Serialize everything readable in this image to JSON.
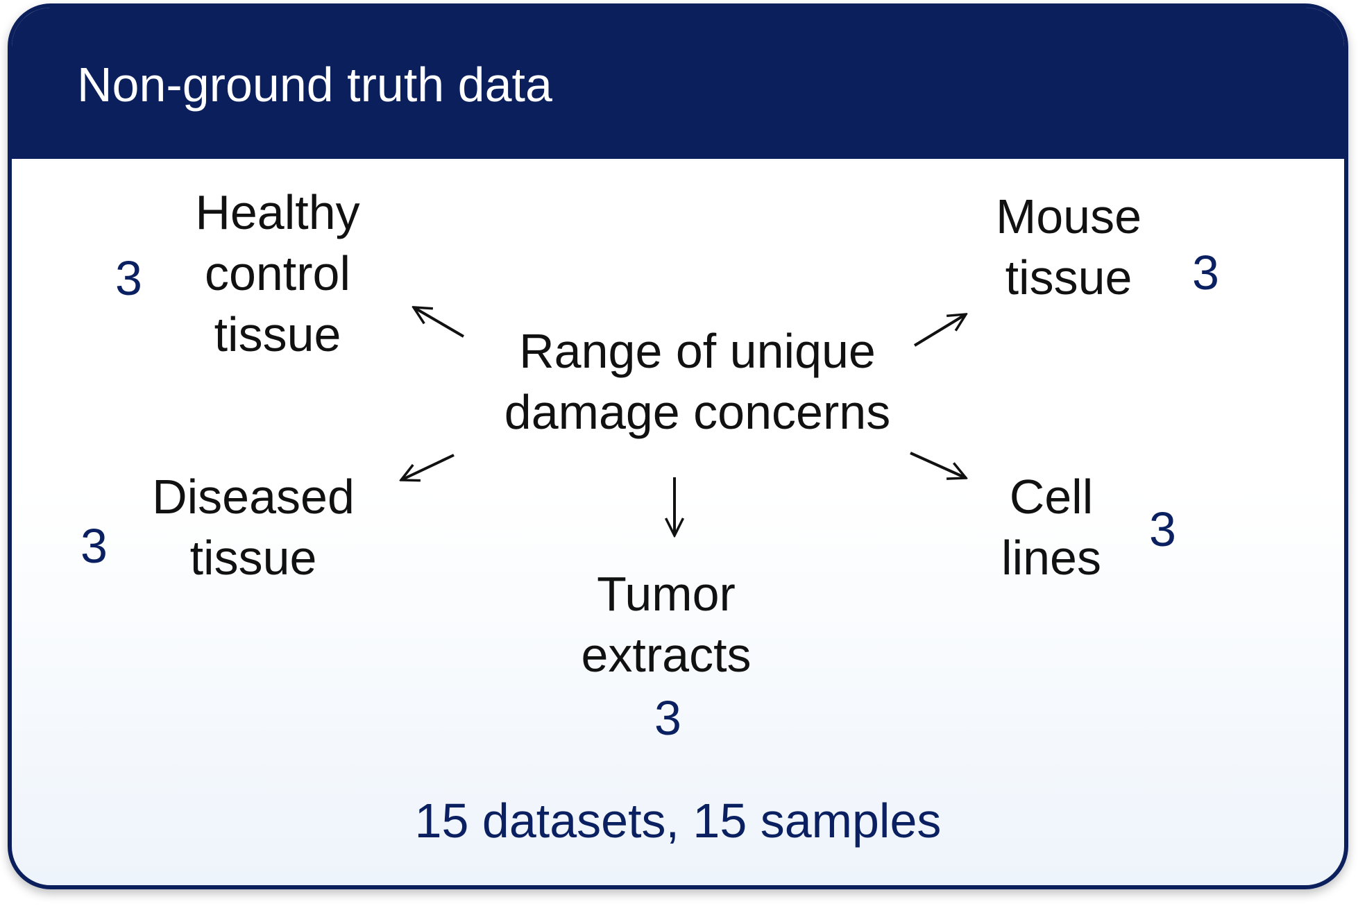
{
  "title": "Non-ground truth data",
  "center": {
    "line1": "Range of unique",
    "line2": "damage concerns"
  },
  "categories": {
    "healthy": {
      "line1": "Healthy",
      "line2": "control",
      "line3": "tissue",
      "count": "3"
    },
    "mouse": {
      "line1": "Mouse",
      "line2": "tissue",
      "count": "3"
    },
    "diseased": {
      "line1": "Diseased",
      "line2": "tissue",
      "count": "3"
    },
    "cell": {
      "line1": "Cell",
      "line2": "lines",
      "count": "3"
    },
    "tumor": {
      "line1": "Tumor",
      "line2": "extracts",
      "count": "3"
    }
  },
  "summary": "15 datasets, 15 samples",
  "colors": {
    "header": "#0b1f5c",
    "count_text": "#0b2060",
    "text": "#111111"
  }
}
